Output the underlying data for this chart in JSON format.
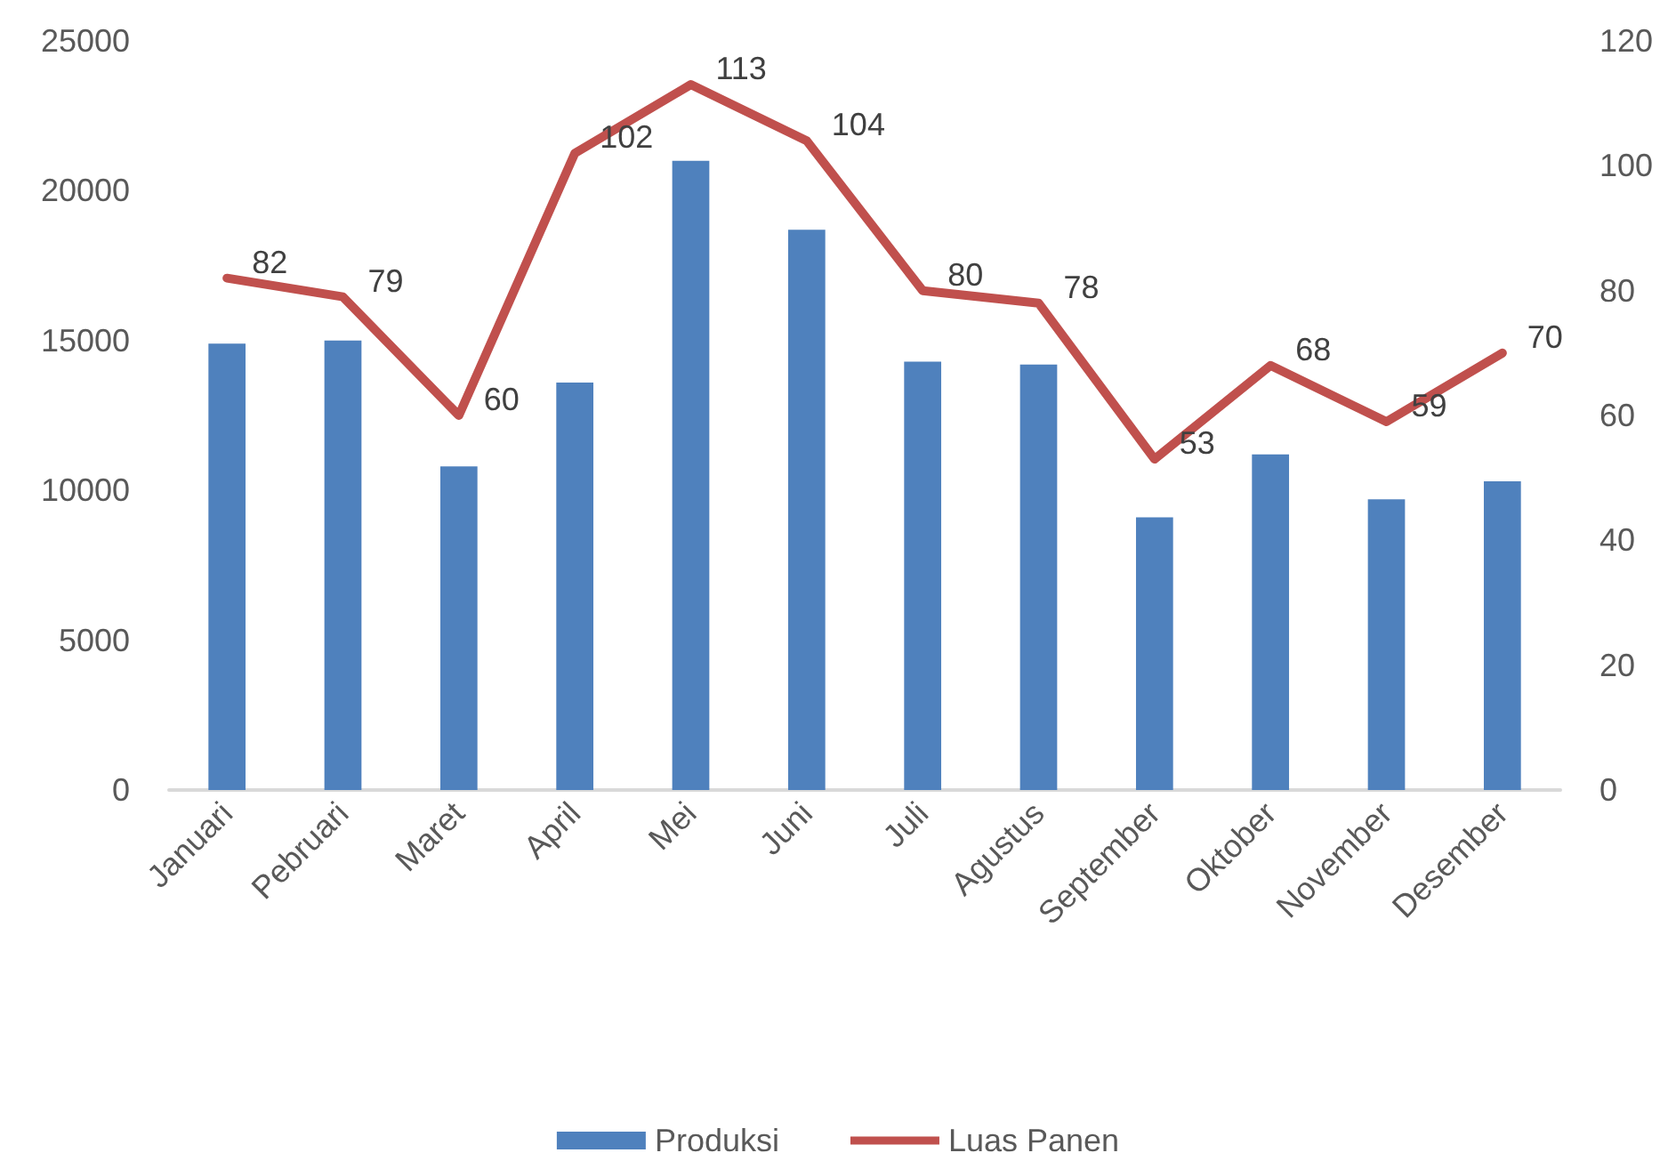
{
  "chart_data": {
    "type": "bar",
    "categories": [
      "Januari",
      "Pebruari",
      "Maret",
      "April",
      "Mei",
      "Juni",
      "Juli",
      "Agustus",
      "September",
      "Oktober",
      "November",
      "Desember"
    ],
    "series": [
      {
        "name": "Produksi",
        "color": "#4f81bd",
        "values": [
          14900,
          15000,
          10800,
          13600,
          21000,
          18700,
          14300,
          14200,
          9100,
          11200,
          9700,
          10300
        ]
      },
      {
        "name": "Luas Panen",
        "type": "line",
        "axis": "y2",
        "color": "#c0504d",
        "values": [
          82,
          79,
          60,
          102,
          113,
          104,
          80,
          78,
          53,
          68,
          59,
          70
        ],
        "value_labels": [
          "82",
          "79",
          "60",
          "102",
          "113",
          "104",
          "80",
          "78",
          "53",
          "68",
          "59",
          "70"
        ]
      }
    ],
    "ylim": [
      0,
      25000
    ],
    "yticks": [
      0,
      5000,
      10000,
      15000,
      20000,
      25000
    ],
    "y2lim": [
      0,
      120
    ],
    "y2ticks": [
      0,
      20,
      40,
      60,
      80,
      100,
      120
    ],
    "legend": "bottom",
    "marker": "none",
    "line_style": "solid"
  }
}
